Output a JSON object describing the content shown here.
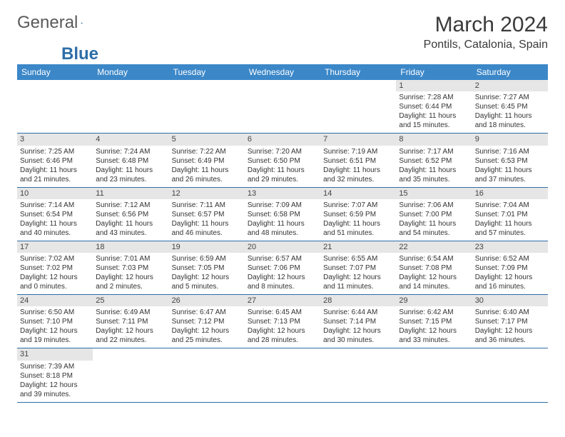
{
  "logo": {
    "text1": "General",
    "text2": "Blue"
  },
  "title": "March 2024",
  "location": "Pontils, Catalonia, Spain",
  "colors": {
    "header_bg": "#3b87c8",
    "header_fg": "#ffffff",
    "rule": "#2d6ea8",
    "daynum_bg": "#e6e6e6",
    "logo_gray": "#5a5a5a",
    "logo_blue": "#2d6ea8"
  },
  "weekdays": [
    "Sunday",
    "Monday",
    "Tuesday",
    "Wednesday",
    "Thursday",
    "Friday",
    "Saturday"
  ],
  "weeks": [
    [
      null,
      null,
      null,
      null,
      null,
      {
        "n": "1",
        "sr": "Sunrise: 7:28 AM",
        "ss": "Sunset: 6:44 PM",
        "dl": "Daylight: 11 hours and 15 minutes."
      },
      {
        "n": "2",
        "sr": "Sunrise: 7:27 AM",
        "ss": "Sunset: 6:45 PM",
        "dl": "Daylight: 11 hours and 18 minutes."
      }
    ],
    [
      {
        "n": "3",
        "sr": "Sunrise: 7:25 AM",
        "ss": "Sunset: 6:46 PM",
        "dl": "Daylight: 11 hours and 21 minutes."
      },
      {
        "n": "4",
        "sr": "Sunrise: 7:24 AM",
        "ss": "Sunset: 6:48 PM",
        "dl": "Daylight: 11 hours and 23 minutes."
      },
      {
        "n": "5",
        "sr": "Sunrise: 7:22 AM",
        "ss": "Sunset: 6:49 PM",
        "dl": "Daylight: 11 hours and 26 minutes."
      },
      {
        "n": "6",
        "sr": "Sunrise: 7:20 AM",
        "ss": "Sunset: 6:50 PM",
        "dl": "Daylight: 11 hours and 29 minutes."
      },
      {
        "n": "7",
        "sr": "Sunrise: 7:19 AM",
        "ss": "Sunset: 6:51 PM",
        "dl": "Daylight: 11 hours and 32 minutes."
      },
      {
        "n": "8",
        "sr": "Sunrise: 7:17 AM",
        "ss": "Sunset: 6:52 PM",
        "dl": "Daylight: 11 hours and 35 minutes."
      },
      {
        "n": "9",
        "sr": "Sunrise: 7:16 AM",
        "ss": "Sunset: 6:53 PM",
        "dl": "Daylight: 11 hours and 37 minutes."
      }
    ],
    [
      {
        "n": "10",
        "sr": "Sunrise: 7:14 AM",
        "ss": "Sunset: 6:54 PM",
        "dl": "Daylight: 11 hours and 40 minutes."
      },
      {
        "n": "11",
        "sr": "Sunrise: 7:12 AM",
        "ss": "Sunset: 6:56 PM",
        "dl": "Daylight: 11 hours and 43 minutes."
      },
      {
        "n": "12",
        "sr": "Sunrise: 7:11 AM",
        "ss": "Sunset: 6:57 PM",
        "dl": "Daylight: 11 hours and 46 minutes."
      },
      {
        "n": "13",
        "sr": "Sunrise: 7:09 AM",
        "ss": "Sunset: 6:58 PM",
        "dl": "Daylight: 11 hours and 48 minutes."
      },
      {
        "n": "14",
        "sr": "Sunrise: 7:07 AM",
        "ss": "Sunset: 6:59 PM",
        "dl": "Daylight: 11 hours and 51 minutes."
      },
      {
        "n": "15",
        "sr": "Sunrise: 7:06 AM",
        "ss": "Sunset: 7:00 PM",
        "dl": "Daylight: 11 hours and 54 minutes."
      },
      {
        "n": "16",
        "sr": "Sunrise: 7:04 AM",
        "ss": "Sunset: 7:01 PM",
        "dl": "Daylight: 11 hours and 57 minutes."
      }
    ],
    [
      {
        "n": "17",
        "sr": "Sunrise: 7:02 AM",
        "ss": "Sunset: 7:02 PM",
        "dl": "Daylight: 12 hours and 0 minutes."
      },
      {
        "n": "18",
        "sr": "Sunrise: 7:01 AM",
        "ss": "Sunset: 7:03 PM",
        "dl": "Daylight: 12 hours and 2 minutes."
      },
      {
        "n": "19",
        "sr": "Sunrise: 6:59 AM",
        "ss": "Sunset: 7:05 PM",
        "dl": "Daylight: 12 hours and 5 minutes."
      },
      {
        "n": "20",
        "sr": "Sunrise: 6:57 AM",
        "ss": "Sunset: 7:06 PM",
        "dl": "Daylight: 12 hours and 8 minutes."
      },
      {
        "n": "21",
        "sr": "Sunrise: 6:55 AM",
        "ss": "Sunset: 7:07 PM",
        "dl": "Daylight: 12 hours and 11 minutes."
      },
      {
        "n": "22",
        "sr": "Sunrise: 6:54 AM",
        "ss": "Sunset: 7:08 PM",
        "dl": "Daylight: 12 hours and 14 minutes."
      },
      {
        "n": "23",
        "sr": "Sunrise: 6:52 AM",
        "ss": "Sunset: 7:09 PM",
        "dl": "Daylight: 12 hours and 16 minutes."
      }
    ],
    [
      {
        "n": "24",
        "sr": "Sunrise: 6:50 AM",
        "ss": "Sunset: 7:10 PM",
        "dl": "Daylight: 12 hours and 19 minutes."
      },
      {
        "n": "25",
        "sr": "Sunrise: 6:49 AM",
        "ss": "Sunset: 7:11 PM",
        "dl": "Daylight: 12 hours and 22 minutes."
      },
      {
        "n": "26",
        "sr": "Sunrise: 6:47 AM",
        "ss": "Sunset: 7:12 PM",
        "dl": "Daylight: 12 hours and 25 minutes."
      },
      {
        "n": "27",
        "sr": "Sunrise: 6:45 AM",
        "ss": "Sunset: 7:13 PM",
        "dl": "Daylight: 12 hours and 28 minutes."
      },
      {
        "n": "28",
        "sr": "Sunrise: 6:44 AM",
        "ss": "Sunset: 7:14 PM",
        "dl": "Daylight: 12 hours and 30 minutes."
      },
      {
        "n": "29",
        "sr": "Sunrise: 6:42 AM",
        "ss": "Sunset: 7:15 PM",
        "dl": "Daylight: 12 hours and 33 minutes."
      },
      {
        "n": "30",
        "sr": "Sunrise: 6:40 AM",
        "ss": "Sunset: 7:17 PM",
        "dl": "Daylight: 12 hours and 36 minutes."
      }
    ],
    [
      {
        "n": "31",
        "sr": "Sunrise: 7:39 AM",
        "ss": "Sunset: 8:18 PM",
        "dl": "Daylight: 12 hours and 39 minutes."
      },
      null,
      null,
      null,
      null,
      null,
      null
    ]
  ]
}
